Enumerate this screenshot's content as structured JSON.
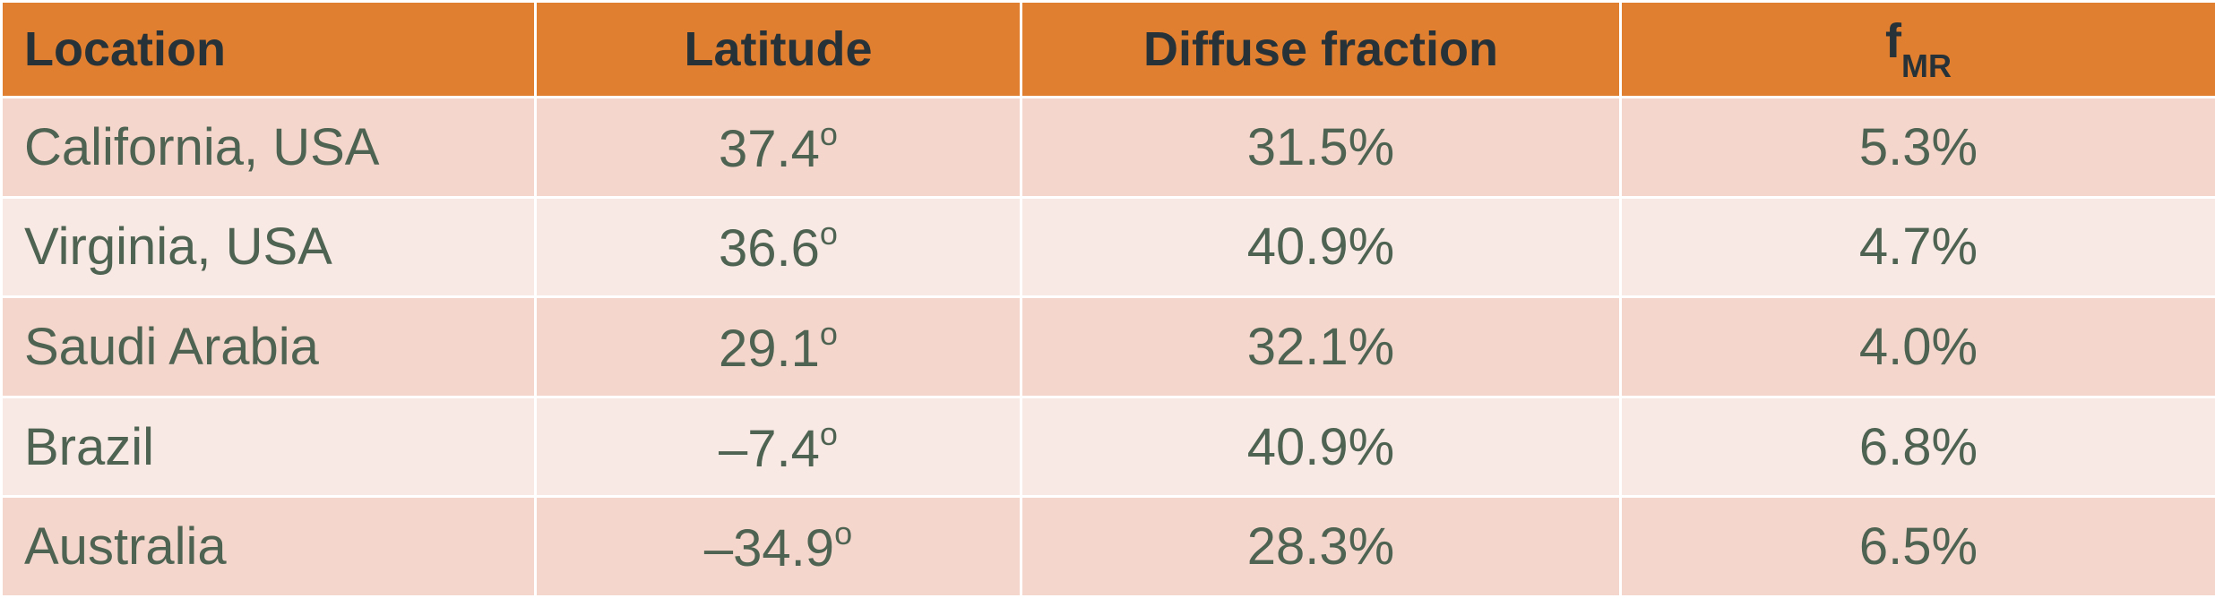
{
  "table": {
    "header": [
      "Location",
      "Latitude",
      "Diffuse fraction",
      {
        "text": "f",
        "sub": "MR"
      }
    ],
    "rows": [
      [
        "California, USA",
        {
          "text": "37.4",
          "sup": "o"
        },
        "31.5%",
        "5.3%"
      ],
      [
        "Virginia, USA",
        {
          "text": "36.6",
          "sup": "o"
        },
        "40.9%",
        "4.7%"
      ],
      [
        "Saudi Arabia",
        {
          "text": "29.1",
          "sup": "o"
        },
        "32.1%",
        "4.0%"
      ],
      [
        "Brazil",
        {
          "text": "–7.4",
          "sup": "o"
        },
        "40.9%",
        "6.8%"
      ],
      [
        "Australia",
        {
          "text": "–34.9",
          "sup": "o"
        },
        "28.3%",
        "6.5%"
      ]
    ]
  }
}
